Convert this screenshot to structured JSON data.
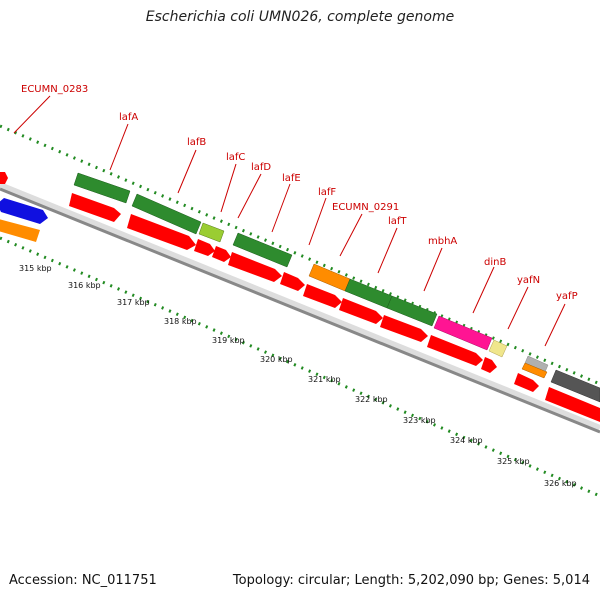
{
  "title": "Escherichia coli UMN026, complete genome",
  "accession": "Accession: NC_011751",
  "topology": "Topology: circular; Length: 5,202,090 bp; Genes: 5,014",
  "gene_labels": [
    "ECUMN_0283",
    "lafA",
    "lafB",
    "lafC",
    "lafD",
    "lafE",
    "lafF",
    "ECUMN_0291",
    "lafT",
    "mbhA",
    "dinB",
    "yafN",
    "yafP"
  ],
  "kbp_labels": [
    "315 kbp",
    "316 kbp",
    "317 kbp",
    "318 kbp",
    "319 kbp",
    "320 kbp",
    "321 kbp",
    "322 kbp",
    "323 kbp",
    "324 kbp",
    "325 kbp",
    "326 kbp"
  ],
  "colors": {
    "label_red": "#cc0000",
    "cds_red": "#ff0000",
    "green": "#2e8b2e",
    "light_green": "#9acd32",
    "orange": "#ff8c00",
    "blue": "#1010e0",
    "magenta": "#ff1493",
    "khaki": "#f0e68c",
    "silver": "#b0b0b0",
    "dark_gray": "#555555",
    "backbone": "#888888",
    "tick_green": "#228b22"
  }
}
